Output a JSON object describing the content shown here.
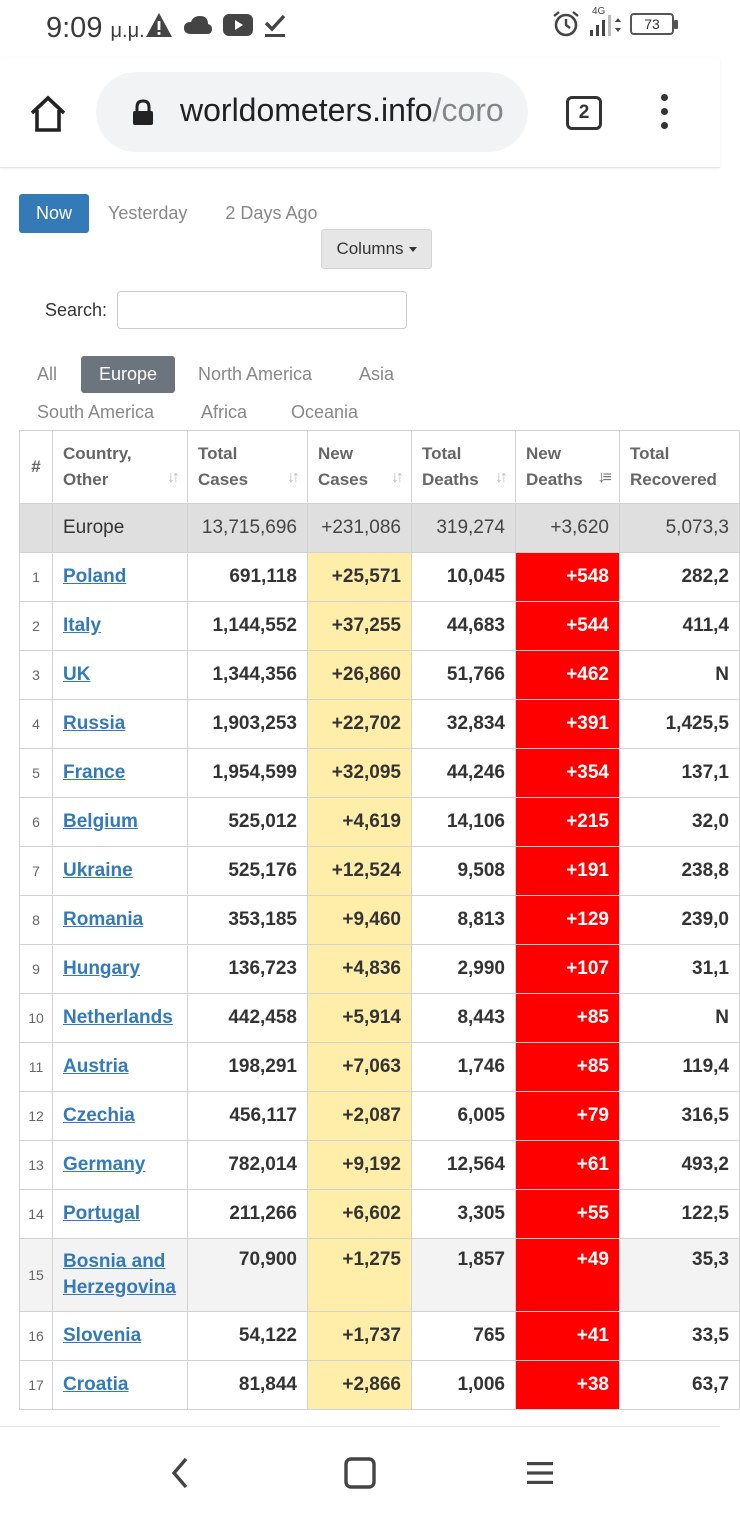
{
  "status_bar": {
    "time": "9:09",
    "time_suffix": "μ.μ.",
    "network": "4G",
    "battery": "73"
  },
  "browser": {
    "url_main": "worldometers.info",
    "url_rest": "/coro",
    "tab_count": "2"
  },
  "day_tabs": [
    {
      "label": "Now",
      "active": true
    },
    {
      "label": "Yesterday",
      "active": false
    },
    {
      "label": "2 Days Ago",
      "active": false
    }
  ],
  "columns_button": "Columns",
  "search": {
    "label": "Search:",
    "value": ""
  },
  "region_tabs": [
    {
      "label": "All",
      "active": false
    },
    {
      "label": "Europe",
      "active": true
    },
    {
      "label": "North America",
      "active": false
    },
    {
      "label": "Asia",
      "active": false
    },
    {
      "label": "South America",
      "active": false
    },
    {
      "label": "Africa",
      "active": false
    },
    {
      "label": "Oceania",
      "active": false
    }
  ],
  "table": {
    "headers": {
      "num": "#",
      "country_1": "Country,",
      "country_2": "Other",
      "total_cases_1": "Total",
      "total_cases_2": "Cases",
      "new_cases_1": "New",
      "new_cases_2": "Cases",
      "total_deaths_1": "Total",
      "total_deaths_2": "Deaths",
      "new_deaths_1": "New",
      "new_deaths_2": "Deaths",
      "total_recovered_1": "Total",
      "total_recovered_2": "Recovered"
    },
    "total_row": {
      "country": "Europe",
      "total_cases": "13,715,696",
      "new_cases": "+231,086",
      "total_deaths": "319,274",
      "new_deaths": "+3,620",
      "total_recovered": "5,073,3"
    },
    "rows": [
      {
        "num": "1",
        "country": "Poland",
        "total_cases": "691,118",
        "new_cases": "+25,571",
        "total_deaths": "10,045",
        "new_deaths": "+548",
        "total_recovered": "282,2"
      },
      {
        "num": "2",
        "country": "Italy",
        "total_cases": "1,144,552",
        "new_cases": "+37,255",
        "total_deaths": "44,683",
        "new_deaths": "+544",
        "total_recovered": "411,4"
      },
      {
        "num": "3",
        "country": "UK",
        "total_cases": "1,344,356",
        "new_cases": "+26,860",
        "total_deaths": "51,766",
        "new_deaths": "+462",
        "total_recovered": "N"
      },
      {
        "num": "4",
        "country": "Russia",
        "total_cases": "1,903,253",
        "new_cases": "+22,702",
        "total_deaths": "32,834",
        "new_deaths": "+391",
        "total_recovered": "1,425,5"
      },
      {
        "num": "5",
        "country": "France",
        "total_cases": "1,954,599",
        "new_cases": "+32,095",
        "total_deaths": "44,246",
        "new_deaths": "+354",
        "total_recovered": "137,1"
      },
      {
        "num": "6",
        "country": "Belgium",
        "total_cases": "525,012",
        "new_cases": "+4,619",
        "total_deaths": "14,106",
        "new_deaths": "+215",
        "total_recovered": "32,0"
      },
      {
        "num": "7",
        "country": "Ukraine",
        "total_cases": "525,176",
        "new_cases": "+12,524",
        "total_deaths": "9,508",
        "new_deaths": "+191",
        "total_recovered": "238,8"
      },
      {
        "num": "8",
        "country": "Romania",
        "total_cases": "353,185",
        "new_cases": "+9,460",
        "total_deaths": "8,813",
        "new_deaths": "+129",
        "total_recovered": "239,0"
      },
      {
        "num": "9",
        "country": "Hungary",
        "total_cases": "136,723",
        "new_cases": "+4,836",
        "total_deaths": "2,990",
        "new_deaths": "+107",
        "total_recovered": "31,1"
      },
      {
        "num": "10",
        "country": "Netherlands",
        "total_cases": "442,458",
        "new_cases": "+5,914",
        "total_deaths": "8,443",
        "new_deaths": "+85",
        "total_recovered": "N"
      },
      {
        "num": "11",
        "country": "Austria",
        "total_cases": "198,291",
        "new_cases": "+7,063",
        "total_deaths": "1,746",
        "new_deaths": "+85",
        "total_recovered": "119,4"
      },
      {
        "num": "12",
        "country": "Czechia",
        "total_cases": "456,117",
        "new_cases": "+2,087",
        "total_deaths": "6,005",
        "new_deaths": "+79",
        "total_recovered": "316,5"
      },
      {
        "num": "13",
        "country": "Germany",
        "total_cases": "782,014",
        "new_cases": "+9,192",
        "total_deaths": "12,564",
        "new_deaths": "+61",
        "total_recovered": "493,2"
      },
      {
        "num": "14",
        "country": "Portugal",
        "total_cases": "211,266",
        "new_cases": "+6,602",
        "total_deaths": "3,305",
        "new_deaths": "+55",
        "total_recovered": "122,5"
      },
      {
        "num": "15",
        "country": "Bosnia and Herzegovina",
        "total_cases": "70,900",
        "new_cases": "+1,275",
        "total_deaths": "1,857",
        "new_deaths": "+49",
        "total_recovered": "35,3"
      },
      {
        "num": "16",
        "country": "Slovenia",
        "total_cases": "54,122",
        "new_cases": "+1,737",
        "total_deaths": "765",
        "new_deaths": "+41",
        "total_recovered": "33,5"
      },
      {
        "num": "17",
        "country": "Croatia",
        "total_cases": "81,844",
        "new_cases": "+2,866",
        "total_deaths": "1,006",
        "new_deaths": "+38",
        "total_recovered": "63,7"
      }
    ]
  }
}
